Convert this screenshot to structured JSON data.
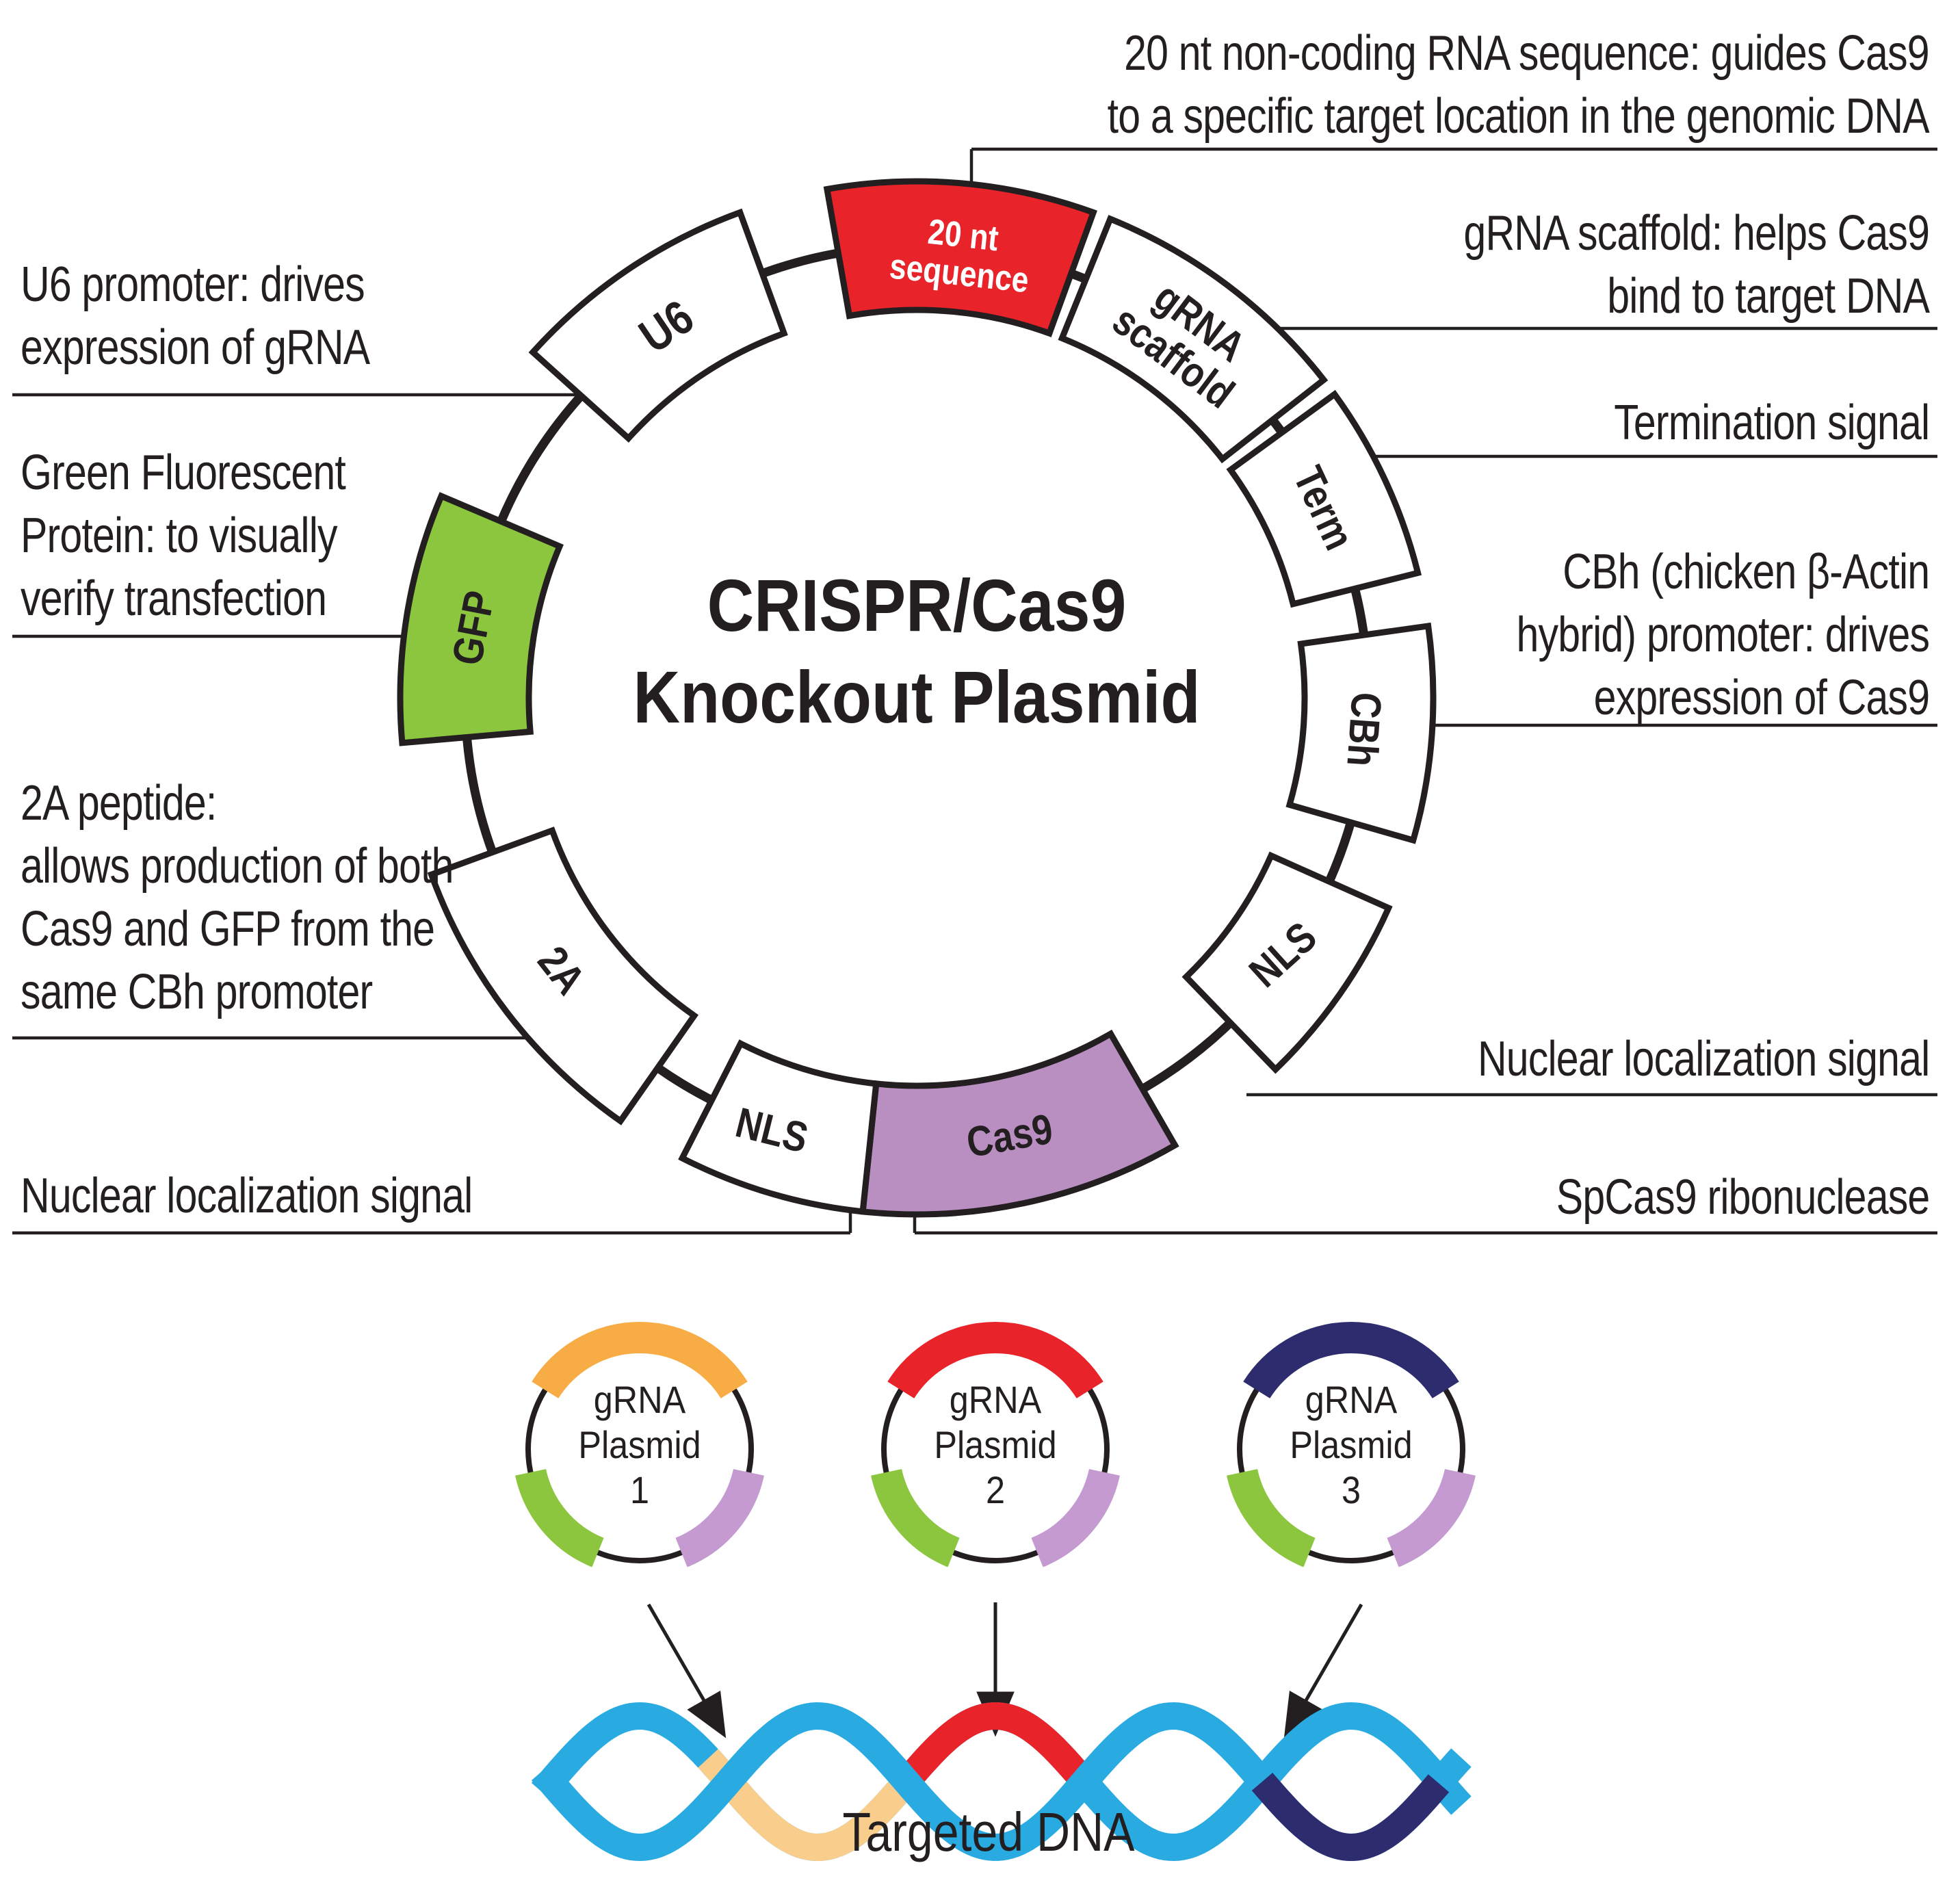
{
  "title": {
    "text": "CRISPR/Cas9\nKnockout Plasmid"
  },
  "ring_labels": {
    "seq20": "20 nt\nsequence",
    "scaffold": "gRNA\nscaffold",
    "term": "Term",
    "cbh": "CBh",
    "nls_right": "NLS",
    "cas9": "Cas9",
    "nls_left": "NLS",
    "p2a": "2A",
    "gfp": "GFP",
    "u6": "U6"
  },
  "annotations": {
    "seq20": {
      "text": "20 nt non-coding RNA sequence: guides Cas9\nto a specific target location in the genomic DNA"
    },
    "scaffold": {
      "text": "gRNA scaffold: helps Cas9\nbind to target DNA"
    },
    "term": {
      "text": "Termination signal"
    },
    "cbh": {
      "text": "CBh (chicken β-Actin\nhybrid) promoter: drives\nexpression of Cas9"
    },
    "nls_right": {
      "text": "Nuclear localization signal"
    },
    "spcas9": {
      "text": "SpCas9 ribonuclease"
    },
    "u6": {
      "text": "U6 promoter: drives\nexpression of gRNA"
    },
    "gfp": {
      "text": "Green Fluorescent\nProtein: to visually\nverify transfection"
    },
    "p2a": {
      "text": "2A peptide:\nallows production of both\nCas9 and GFP from the\nsame CBh promoter"
    },
    "nls_left": {
      "text": "Nuclear localization signal"
    }
  },
  "mini_plasmids": [
    {
      "label": "gRNA\nPlasmid\n1",
      "arc_color": "#F8AC45"
    },
    {
      "label": "gRNA\nPlasmid\n2",
      "arc_color": "#E8232A"
    },
    {
      "label": "gRNA\nPlasmid\n3",
      "arc_color": "#2D2C6E"
    }
  ],
  "dna": {
    "label": "Targeted DNA"
  },
  "colors": {
    "red": "#E8232A",
    "green": "#8CC63E",
    "purple": "#B98FC2",
    "mini_green": "#8CC63E",
    "mini_purple": "#C49AD0",
    "helix_blue": "#29ABE2",
    "helix_tan": "#F9CE8C",
    "helix_red": "#E8232A",
    "helix_navy": "#2D2C6E",
    "ink": "#231F20"
  }
}
